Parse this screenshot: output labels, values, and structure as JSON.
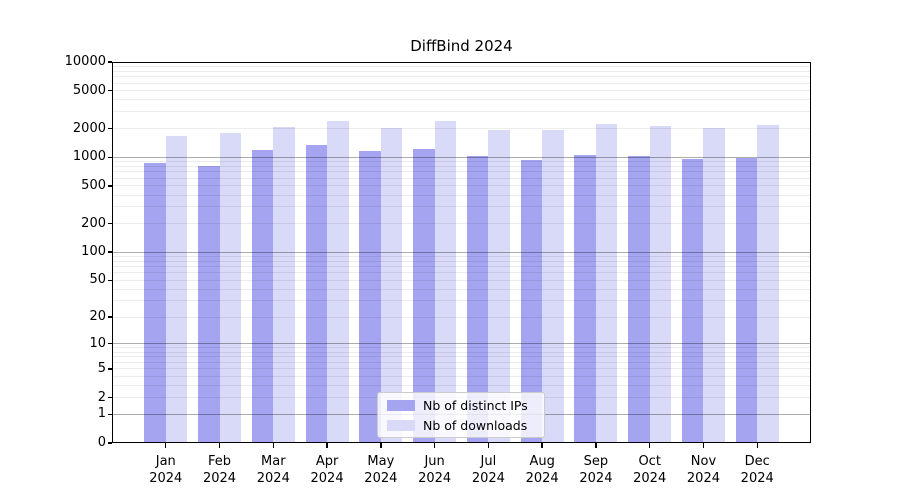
{
  "chart_data": {
    "type": "bar",
    "title": "DiffBind 2024",
    "categories": [
      "Jan",
      "Feb",
      "Mar",
      "Apr",
      "May",
      "Jun",
      "Jul",
      "Aug",
      "Sep",
      "Oct",
      "Nov",
      "Dec"
    ],
    "category_year": "2024",
    "series": [
      {
        "name": "Nb of distinct IPs",
        "color": "#a4a4f0",
        "values": [
          864,
          803,
          1204,
          1337,
          1164,
          1234,
          1032,
          929,
          1048,
          1036,
          969,
          983
        ]
      },
      {
        "name": "Nb of downloads",
        "color": "#d9d9f8",
        "values": [
          1665,
          1780,
          2075,
          2380,
          2025,
          2420,
          1955,
          1910,
          2210,
          2145,
          2045,
          2180
        ]
      }
    ],
    "yscale": "log10(value+1)",
    "ylim": [
      0,
      10000
    ],
    "ytick_labels": [
      "10000",
      "5000",
      "2000",
      "1000",
      "500",
      "200",
      "100",
      "50",
      "20",
      "10",
      "5",
      "2",
      "1",
      "0"
    ],
    "ytick_values": [
      10000,
      5000,
      2000,
      1000,
      500,
      200,
      100,
      50,
      20,
      10,
      5,
      2,
      1,
      0
    ],
    "grid": {
      "major_values": [
        1,
        10,
        100,
        1000
      ],
      "minor": "2-9 per decade",
      "drawn_over_bars": true
    },
    "legend": {
      "position": "lower-center inside plot",
      "items": [
        "Nb of distinct IPs",
        "Nb of downloads"
      ]
    },
    "colors": {
      "axis": "#000000",
      "grid_major": "rgba(0,0,0,0.32)",
      "grid_minor": "rgba(0,0,0,0.075)"
    }
  }
}
